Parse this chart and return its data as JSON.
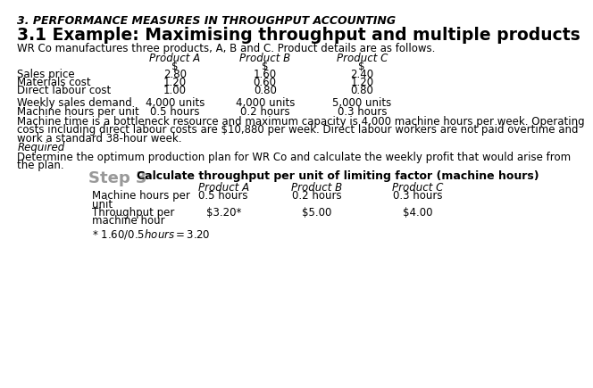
{
  "main_title": "3. PERFORMANCE MEASURES IN THROUGHPUT ACCOUNTING",
  "section_title": "3.1 Example: Maximising throughput and multiple products",
  "intro_text": "WR Co manufactures three products, A, B and C. Product details are as follows.",
  "col_headers_italic": [
    "Product A",
    "Product B",
    "Product C"
  ],
  "currency_row": [
    "$",
    "$",
    "$"
  ],
  "table_rows": [
    [
      "Sales price",
      "2.80",
      "1.60",
      "2.40"
    ],
    [
      "Materials cost",
      "1.20",
      "0.60",
      "1.20"
    ],
    [
      "Direct labour cost",
      "1.00",
      "0.80",
      "0.80"
    ]
  ],
  "spacer_rows": [
    [
      "Weekly sales demand",
      "4,000 units",
      "4,000 units",
      "5,000 units"
    ],
    [
      "Machine hours per unit",
      "0.5 hours",
      "0.2 hours",
      "0.3 hours"
    ]
  ],
  "body_text_line1": "Machine time is a bottleneck resource and maximum capacity is 4,000 machine hours per week. Operating",
  "body_text_line2": "costs including direct labour costs are $10,880 per week. Direct labour workers are not paid overtime and",
  "body_text_line3": "work a standard 38-hour week.",
  "required_text": "Required",
  "required_body_line1": "Determine the optimum production plan for WR Co and calculate the weekly profit that would arise from",
  "required_body_line2": "the plan.",
  "step_label": "Step 3",
  "step_desc": "Calculate throughput per unit of limiting factor (machine hours)",
  "step_col_headers": [
    "Product A",
    "Product B",
    "Product C"
  ],
  "step_row1_label_line1": "Machine hours per",
  "step_row1_label_line2": "unit",
  "step_row1_vals": [
    "0.5 hours",
    "0.2 hours",
    "0.3 hours"
  ],
  "step_row2_label_line1": "Throughput per",
  "step_row2_label_line2": "machine hour",
  "step_row2_vals": [
    "$3.20*",
    "$5.00",
    "$4.00"
  ],
  "footnote": "* $1.60 / 0.5 hours = $3.20",
  "bg_color": "#ffffff",
  "text_color": "#000000",
  "step_color": "#999999"
}
